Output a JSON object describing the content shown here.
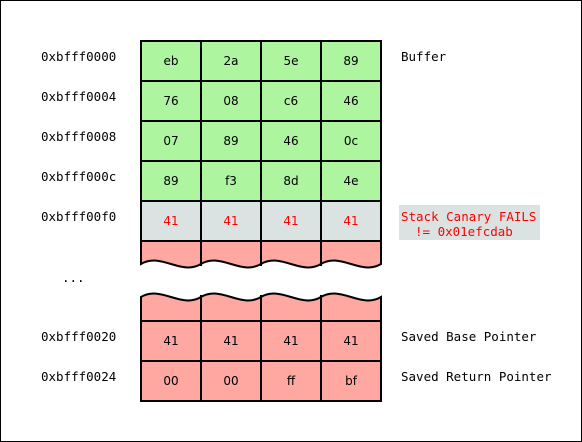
{
  "colors": {
    "buffer_fill": "#aef5a0",
    "canary_fill": "#dae2e2",
    "overflow_fill": "#fea8a1",
    "border": "#000000",
    "alert_text": "#ff0000",
    "alert_bg": "#dae2e2",
    "text": "#000000"
  },
  "rows": [
    {
      "address": "0xbfff0000",
      "bytes": [
        "eb",
        "2a",
        "5e",
        "89"
      ],
      "region": "buffer",
      "label": "Buffer"
    },
    {
      "address": "0xbfff0004",
      "bytes": [
        "76",
        "08",
        "c6",
        "46"
      ],
      "region": "buffer",
      "label": ""
    },
    {
      "address": "0xbfff0008",
      "bytes": [
        "07",
        "89",
        "46",
        "0c"
      ],
      "region": "buffer",
      "label": ""
    },
    {
      "address": "0xbfff000c",
      "bytes": [
        "89",
        "f3",
        "8d",
        "4e"
      ],
      "region": "buffer",
      "label": ""
    },
    {
      "address": "0xbfff00f0",
      "bytes": [
        "41",
        "41",
        "41",
        "41"
      ],
      "region": "canary",
      "label": ""
    },
    {
      "address": "0xbfff0020",
      "bytes": [
        "41",
        "41",
        "41",
        "41"
      ],
      "region": "overflow",
      "label": "Saved Base Pointer"
    },
    {
      "address": "0xbfff0024",
      "bytes": [
        "00",
        "00",
        "ff",
        "bf"
      ],
      "region": "overflow",
      "label": "Saved Return Pointer"
    }
  ],
  "ellipsis": "...",
  "canary_alert": {
    "line1": "Stack Canary FAILS",
    "line2": "!= 0x01efcdab"
  }
}
